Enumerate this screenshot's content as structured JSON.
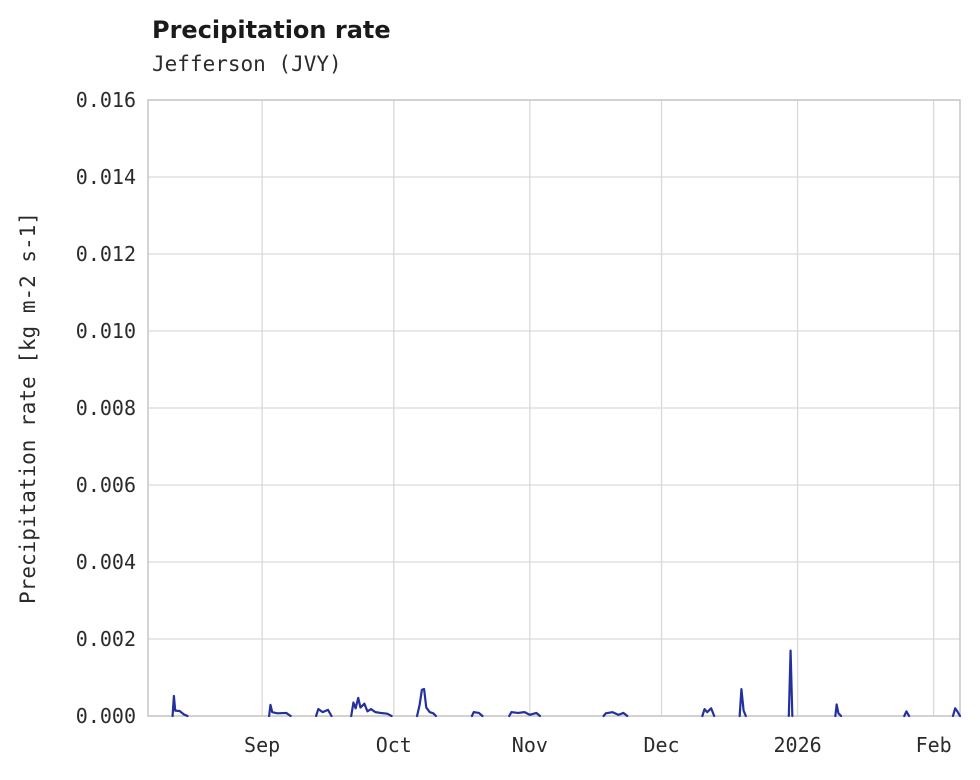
{
  "header": {
    "title": "Precipitation rate",
    "subtitle": "Jefferson (JVY)"
  },
  "chart_data": {
    "type": "line",
    "title": "Precipitation rate",
    "subtitle": "Jefferson (JVY)",
    "xlabel": "",
    "ylabel": "Precipitation rate [kg m-2 s-1]",
    "x_unit": "days since 2025-08-06",
    "xlim": [
      0,
      185
    ],
    "ylim": [
      0,
      0.016
    ],
    "grid": true,
    "legend": "none",
    "line_color": "#24309e",
    "grid_color": "#d9d9d9",
    "border_color": "#c9c9c9",
    "y_ticks": [
      0.0,
      0.002,
      0.004,
      0.006,
      0.008,
      0.01,
      0.012,
      0.014,
      0.016
    ],
    "y_tick_labels": [
      "0.000",
      "0.002",
      "0.004",
      "0.006",
      "0.008",
      "0.010",
      "0.012",
      "0.014",
      "0.016"
    ],
    "x_ticks": [
      {
        "pos": 26,
        "label": "Sep"
      },
      {
        "pos": 56,
        "label": "Oct"
      },
      {
        "pos": 87,
        "label": "Nov"
      },
      {
        "pos": 117,
        "label": "Dec"
      },
      {
        "pos": 148,
        "label": "2026"
      },
      {
        "pos": 179,
        "label": "Feb"
      }
    ],
    "series": [
      {
        "name": "precipitation_rate",
        "segments": [
          [
            [
              5.6,
              0
            ],
            [
              5.9,
              0.00052
            ],
            [
              6.2,
              0.00014
            ],
            [
              7.2,
              0.00013
            ],
            [
              8.2,
              4e-05
            ],
            [
              9,
              0
            ]
          ],
          [
            [
              27.6,
              0
            ],
            [
              27.9,
              0.00029
            ],
            [
              28.3,
              0.0001
            ],
            [
              29.5,
              7e-05
            ],
            [
              31.5,
              8e-05
            ],
            [
              32.5,
              0
            ]
          ],
          [
            [
              38.3,
              0
            ],
            [
              38.8,
              0.00018
            ],
            [
              39.8,
              0.0001
            ],
            [
              41,
              0.00016
            ],
            [
              41.8,
              0
            ]
          ],
          [
            [
              46.3,
              0
            ],
            [
              46.8,
              0.00035
            ],
            [
              47.3,
              0.0002
            ],
            [
              47.9,
              0.00047
            ],
            [
              48.4,
              0.00022
            ],
            [
              49.3,
              0.00032
            ],
            [
              50,
              0.00012
            ],
            [
              50.8,
              0.00018
            ],
            [
              51.8,
              0.0001
            ],
            [
              53,
              8e-05
            ],
            [
              54.5,
              6e-05
            ],
            [
              55.5,
              0
            ]
          ],
          [
            [
              61.3,
              0
            ],
            [
              61.9,
              0.0003
            ],
            [
              62.4,
              0.00068
            ],
            [
              62.9,
              0.0007
            ],
            [
              63.4,
              0.00022
            ],
            [
              64.2,
              0.0001
            ],
            [
              65,
              7e-05
            ],
            [
              65.6,
              0
            ]
          ],
          [
            [
              73.8,
              0
            ],
            [
              74.2,
              0.0001
            ],
            [
              75.4,
              8e-05
            ],
            [
              76.2,
              0
            ]
          ],
          [
            [
              82.3,
              0
            ],
            [
              82.8,
              0.0001
            ],
            [
              84.3,
              8e-05
            ],
            [
              85.8,
              0.0001
            ],
            [
              87,
              3e-05
            ],
            [
              88.5,
              8e-05
            ],
            [
              89.3,
              0
            ]
          ],
          [
            [
              103.8,
              0
            ],
            [
              104.3,
              7e-05
            ],
            [
              105.8,
              0.0001
            ],
            [
              107.2,
              3e-05
            ],
            [
              108.3,
              8e-05
            ],
            [
              109.2,
              0
            ]
          ],
          [
            [
              126.3,
              0
            ],
            [
              126.8,
              0.00018
            ],
            [
              127.4,
              0.0001
            ],
            [
              128.3,
              0.0002
            ],
            [
              129,
              0
            ]
          ],
          [
            [
              134.8,
              0
            ],
            [
              135.2,
              0.0007
            ],
            [
              135.7,
              0.00014
            ],
            [
              136.2,
              0
            ]
          ],
          [
            [
              146,
              0
            ],
            [
              146.4,
              0.0017
            ],
            [
              146.8,
              0
            ]
          ],
          [
            [
              156.6,
              0
            ],
            [
              156.9,
              0.0003
            ],
            [
              157.3,
              7e-05
            ],
            [
              157.9,
              0
            ]
          ],
          [
            [
              172.3,
              0
            ],
            [
              172.8,
              0.00012
            ],
            [
              173.4,
              0
            ]
          ],
          [
            [
              183.4,
              0
            ],
            [
              183.9,
              0.0002
            ],
            [
              184.5,
              0.0001
            ],
            [
              185,
              0
            ]
          ]
        ]
      }
    ]
  }
}
